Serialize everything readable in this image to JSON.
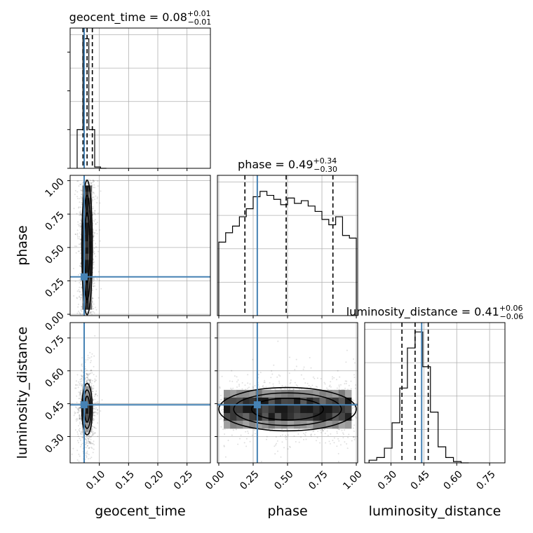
{
  "chart_data": {
    "type": "corner",
    "parameters": [
      "geocent_time",
      "phase",
      "luminosity_distance"
    ],
    "truth_color": "#4682b4",
    "panels": {
      "geocent_time_hist": {
        "title": {
          "text": "geocent_time = 0.08",
          "sup": "+0.01",
          "sub": "−0.01"
        },
        "xlim": [
          0.05,
          0.29
        ],
        "bin_edges": [
          0.062,
          0.072,
          0.082,
          0.092,
          0.102,
          0.112
        ],
        "values": [
          0.29,
          0.97,
          0.29,
          0.01,
          0.0
        ],
        "quantiles": [
          0.072,
          0.079,
          0.088
        ],
        "truth": 0.074
      },
      "phase_hist": {
        "title": {
          "text": "phase = 0.49",
          "sup": "+0.34",
          "sub": "−0.30"
        },
        "xlim": [
          -0.01,
          1.01
        ],
        "bin_edges": [
          0.0,
          0.05,
          0.1,
          0.15,
          0.2,
          0.25,
          0.3,
          0.35,
          0.4,
          0.45,
          0.5,
          0.55,
          0.6,
          0.65,
          0.7,
          0.75,
          0.8,
          0.85,
          0.9,
          0.95,
          1.0
        ],
        "values": [
          0.55,
          0.62,
          0.67,
          0.74,
          0.8,
          0.89,
          0.93,
          0.9,
          0.87,
          0.83,
          0.88,
          0.84,
          0.86,
          0.82,
          0.78,
          0.72,
          0.68,
          0.74,
          0.6,
          0.58
        ],
        "quantiles": [
          0.19,
          0.49,
          0.83
        ],
        "truth": 0.28
      },
      "luminosity_distance_hist": {
        "title": {
          "text": "luminosity_distance = 0.41",
          "sup": "+0.06",
          "sub": "−0.06"
        },
        "xlim": [
          0.18,
          0.82
        ],
        "bin_edges": [
          0.2,
          0.235,
          0.27,
          0.305,
          0.34,
          0.375,
          0.41,
          0.445,
          0.48,
          0.515,
          0.55,
          0.585,
          0.62,
          0.655
        ],
        "values": [
          0.02,
          0.04,
          0.11,
          0.3,
          0.56,
          0.86,
          0.98,
          0.72,
          0.38,
          0.12,
          0.04,
          0.01,
          0.0
        ],
        "quantiles": [
          0.35,
          0.41,
          0.47
        ],
        "truth": 0.44
      },
      "phase_vs_geocent_time": {
        "xlim": [
          0.05,
          0.29
        ],
        "ylim": [
          -0.01,
          1.04
        ],
        "center": [
          0.079,
          0.5
        ],
        "spread": [
          0.005,
          0.29
        ],
        "truth": [
          0.074,
          0.28
        ]
      },
      "luminosity_distance_vs_geocent_time": {
        "xlim": [
          0.05,
          0.29
        ],
        "ylim": [
          0.18,
          0.82
        ],
        "center": [
          0.079,
          0.425
        ],
        "spread": [
          0.005,
          0.065
        ],
        "truth": [
          0.074,
          0.445
        ]
      },
      "luminosity_distance_vs_phase": {
        "xlim": [
          -0.01,
          1.01
        ],
        "ylim": [
          0.18,
          0.82
        ],
        "center": [
          0.5,
          0.425
        ],
        "spread": [
          0.29,
          0.055
        ],
        "truth": [
          0.28,
          0.445
        ]
      }
    },
    "axes": {
      "geocent_time": {
        "label": "geocent_time",
        "ticks": [
          0.1,
          0.15,
          0.2,
          0.25
        ],
        "tick_labels": [
          "0.10",
          "0.15",
          "0.20",
          "0.25"
        ]
      },
      "phase": {
        "label": "phase",
        "ticks": [
          0.0,
          0.25,
          0.5,
          0.75,
          1.0
        ],
        "tick_labels": [
          "0.00",
          "0.25",
          "0.50",
          "0.75",
          "1.00"
        ]
      },
      "luminosity_distance": {
        "label": "luminosity_distance",
        "ticks": [
          0.3,
          0.45,
          0.6,
          0.75
        ],
        "tick_labels": [
          "0.30",
          "0.45",
          "0.60",
          "0.75"
        ]
      }
    },
    "grid": true
  }
}
